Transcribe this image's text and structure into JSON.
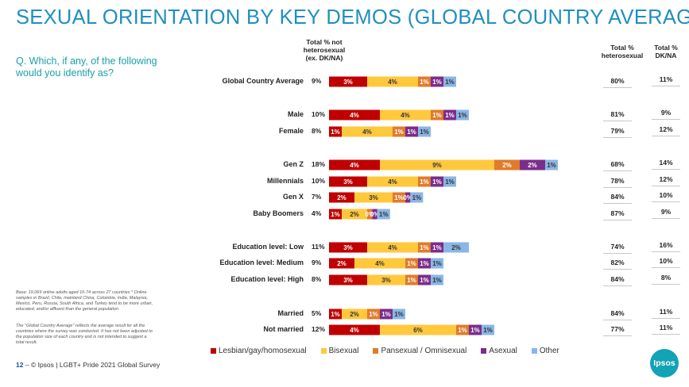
{
  "title": "SEXUAL ORIENTATION BY KEY DEMOS (GLOBAL COUNTRY AVERAGE)",
  "question": "Q. Which, if any, of the following would you identify as?",
  "headers": {
    "not_hetero": "Total % not heterosexual (ex. DK/NA)",
    "hetero": "Total % heterosexual",
    "dkna": "Total % DK/NA"
  },
  "notes": {
    "base": "Base: 19,069 online adults aged 16-74 across 27 countries * Online samples in Brazil, Chile, mainland China, Colombia, India, Malaysia, Mexico, Peru, Russia, South Africa, and Turkey tend to be more urban, educated, and/or affluent than the general population",
    "gca": "The \"Global Country Average\" reflects the average result for all the countries where the survey was conducted. It has not been adjusted to the population size of each country and is not intended to suggest a total result."
  },
  "footer": {
    "page": "12",
    "dash": "–",
    "text": "© Ipsos | LGBT+ Pride 2021 Global Survey"
  },
  "logo": "Ipsos",
  "colors": {
    "lgb": "#c00000",
    "bisexual": "#ffc83d",
    "pansexual": "#e07b2a",
    "asexual": "#7b2d8b",
    "other": "#8ab6e6"
  },
  "chart_data": {
    "type": "bar",
    "orientation": "horizontal-stacked",
    "title": "SEXUAL ORIENTATION BY KEY DEMOS (GLOBAL COUNTRY AVERAGE)",
    "series_names": [
      "Lesbian/gay/homosexual",
      "Bisexual",
      "Pansexual / Omnisexual",
      "Asexual",
      "Other"
    ],
    "legend_position": "bottom",
    "rows": [
      {
        "label": "Global Country Average",
        "not_hetero": "9%",
        "values": [
          3,
          4,
          1,
          1,
          1
        ],
        "labels": [
          "3%",
          "4%",
          "1%",
          "1%",
          "1%"
        ],
        "hetero": "80%",
        "dkna": "11%"
      },
      {
        "label": "Male",
        "not_hetero": "10%",
        "values": [
          4,
          4,
          1,
          1,
          1
        ],
        "labels": [
          "4%",
          "4%",
          "1%",
          "1%",
          "1%"
        ],
        "hetero": "81%",
        "dkna": "9%"
      },
      {
        "label": "Female",
        "not_hetero": "8%",
        "values": [
          1,
          4,
          1,
          1,
          1
        ],
        "labels": [
          "1%",
          "4%",
          "1%",
          "1%",
          "1%"
        ],
        "hetero": "79%",
        "dkna": "12%"
      },
      {
        "label": "Gen Z",
        "not_hetero": "18%",
        "values": [
          4,
          9,
          2,
          2,
          1
        ],
        "labels": [
          "4%",
          "9%",
          "2%",
          "2%",
          "1%"
        ],
        "hetero": "68%",
        "dkna": "14%"
      },
      {
        "label": "Millennials",
        "not_hetero": "10%",
        "values": [
          3,
          4,
          1,
          1,
          1
        ],
        "labels": [
          "3%",
          "4%",
          "1%",
          "1%",
          "1%"
        ],
        "hetero": "78%",
        "dkna": "12%"
      },
      {
        "label": "Gen X",
        "not_hetero": "7%",
        "values": [
          2,
          3,
          1,
          0.4,
          1
        ],
        "labels": [
          "2%",
          "3%",
          "1%",
          "0%",
          "1%"
        ],
        "hetero": "84%",
        "dkna": "10%"
      },
      {
        "label": "Baby Boomers",
        "not_hetero": "4%",
        "values": [
          1,
          2,
          0.4,
          0.4,
          1
        ],
        "labels": [
          "1%",
          "2%",
          "0%",
          "0%",
          "1%"
        ],
        "hetero": "87%",
        "dkna": "9%"
      },
      {
        "label": "Education level: Low",
        "not_hetero": "11%",
        "values": [
          3,
          4,
          1,
          1,
          2
        ],
        "labels": [
          "3%",
          "4%",
          "1%",
          "1%",
          "2%"
        ],
        "hetero": "74%",
        "dkna": "16%"
      },
      {
        "label": "Education level: Medium",
        "not_hetero": "9%",
        "values": [
          2,
          4,
          1,
          1,
          1
        ],
        "labels": [
          "2%",
          "4%",
          "1%",
          "1%",
          "1%"
        ],
        "hetero": "82%",
        "dkna": "10%"
      },
      {
        "label": "Education level: High",
        "not_hetero": "8%",
        "values": [
          3,
          3,
          1,
          1,
          1
        ],
        "labels": [
          "3%",
          "3%",
          "1%",
          "1%",
          "1%"
        ],
        "hetero": "84%",
        "dkna": "8%"
      },
      {
        "label": "Married",
        "not_hetero": "5%",
        "values": [
          1,
          2,
          1,
          1,
          1
        ],
        "labels": [
          "1%",
          "2%",
          "1%",
          "1%",
          "1%"
        ],
        "hetero": "84%",
        "dkna": "11%"
      },
      {
        "label": "Not married",
        "not_hetero": "12%",
        "values": [
          4,
          6,
          1,
          1,
          1
        ],
        "labels": [
          "4%",
          "6%",
          "1%",
          "1%",
          "1%"
        ],
        "hetero": "77%",
        "dkna": "11%"
      }
    ]
  }
}
